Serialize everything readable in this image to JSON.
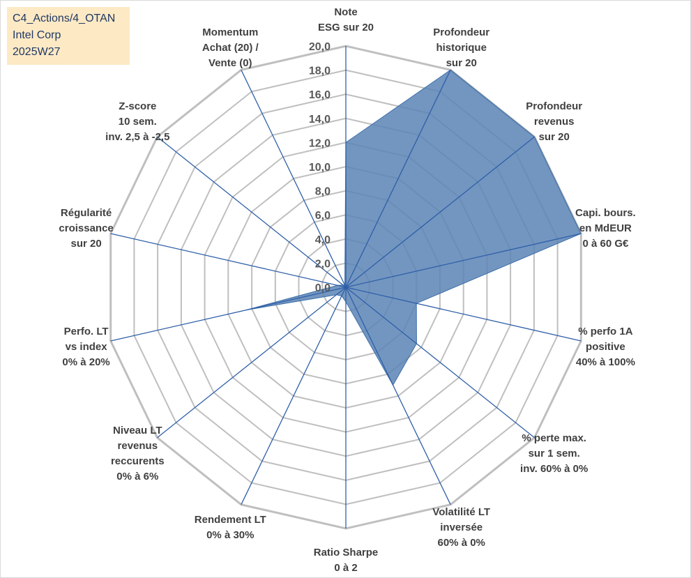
{
  "info_box": {
    "line1": "C4_Actions/4_OTAN",
    "line2": "Intel Corp",
    "line3": "2025W27"
  },
  "colors": {
    "area_fill": "#5b84b5",
    "area_stroke": "#3d6fa8",
    "spoke": "#2e5fa8",
    "grid": "#bfbfbf",
    "info_bg": "#fde9c4",
    "info_text": "#1f3864"
  },
  "chart_data": {
    "type": "radar",
    "title": "",
    "r_min": 0,
    "r_max": 20,
    "r_step": 2,
    "tick_labels": [
      "0,0",
      "2,0",
      "4,0",
      "6,0",
      "8,0",
      "10,0",
      "12,0",
      "14,0",
      "16,0",
      "18,0",
      "20,0"
    ],
    "axes": [
      {
        "label": [
          "Note",
          "ESG sur 20"
        ],
        "value": 12.0
      },
      {
        "label": [
          "Profondeur",
          "historique",
          "sur 20"
        ],
        "value": 20.0
      },
      {
        "label": [
          "Profondeur",
          "revenus",
          "sur 20"
        ],
        "value": 20.0
      },
      {
        "label": [
          "Capi. bours.",
          "en MdEUR",
          "0 à 60 G€"
        ],
        "value": 20.0
      },
      {
        "label": [
          "% perfo 1A",
          "positive",
          "40% à 100%"
        ],
        "value": 6.0
      },
      {
        "label": [
          "% perte max.",
          "sur 1 sem.",
          "inv. 60% à 0%"
        ],
        "value": 7.5
      },
      {
        "label": [
          "Volatilité LT",
          "inversée",
          "60% à 0%"
        ],
        "value": 9.0
      },
      {
        "label": [
          "Ratio Sharpe",
          "0 à 2"
        ],
        "value": 1.2
      },
      {
        "label": [
          "Rendement LT",
          "0% à 30%"
        ],
        "value": 0.8
      },
      {
        "label": [
          "Niveau LT",
          "revenus",
          "reccurents",
          "0% à 6%"
        ],
        "value": 1.0
      },
      {
        "label": [
          "Perfo. LT",
          "vs index",
          "0% à 20%"
        ],
        "value": 8.5
      },
      {
        "label": [
          "Régularité",
          "croissance",
          "sur 20"
        ],
        "value": 0.7
      },
      {
        "label": [
          "Z-score",
          "10 sem.",
          "inv. 2,5 à -2,5"
        ],
        "value": 0.3
      },
      {
        "label": [
          "Momentum",
          "Achat (20) /",
          "Vente (0)"
        ],
        "value": 0.2
      }
    ],
    "grid": true,
    "legend": "none"
  }
}
